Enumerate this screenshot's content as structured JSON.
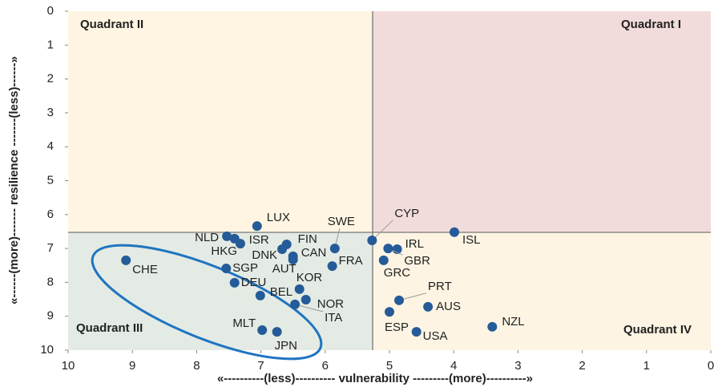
{
  "chart_data": {
    "type": "scatter",
    "xlabel": "«----------(less)---------- vulnerability ---------(more)----------»",
    "ylabel": "«------(more)------- resilience -------(less)------»",
    "quadrants": [
      "Quadrant I",
      "Quadrant II",
      "Quadrant III",
      "Quadrant IV"
    ],
    "labels": [
      "LUX",
      "NLD",
      "ISR",
      "HKG",
      "FIN",
      "DNK",
      "CAN",
      "AUT",
      "SWE",
      "FRA",
      "CYP",
      "SGP",
      "DEU",
      "CHE",
      "KOR",
      "BEL",
      "NOR",
      "ITA",
      "MLT",
      "JPN",
      "IRL",
      "ISL",
      "GBR",
      "GRC",
      "PRT",
      "AUS",
      "ESP",
      "USA",
      "NZL"
    ],
    "x": [
      7.06,
      7.53,
      7.41,
      7.32,
      6.6,
      6.67,
      6.5,
      6.5,
      5.85,
      5.89,
      5.27,
      7.54,
      7.41,
      9.1,
      6.4,
      7.01,
      6.3,
      6.47,
      6.98,
      6.75,
      4.88,
      3.99,
      5.02,
      5.09,
      4.85,
      4.4,
      5.0,
      4.58,
      3.4
    ],
    "y": [
      6.34,
      6.64,
      6.71,
      6.86,
      6.88,
      7.02,
      7.23,
      7.33,
      7.0,
      7.52,
      6.76,
      7.59,
      8.01,
      7.35,
      8.2,
      8.39,
      8.51,
      8.65,
      9.41,
      9.46,
      7.02,
      6.52,
      7.0,
      7.35,
      8.53,
      8.72,
      8.87,
      9.46,
      9.31
    ],
    "color": "#255b98",
    "xlim": [
      10,
      0
    ],
    "xticks": [
      10,
      9,
      8,
      7,
      6,
      5,
      4,
      3,
      2,
      1,
      0
    ],
    "ylim": [
      10,
      0
    ],
    "yticks": [
      0,
      1,
      2,
      3,
      4,
      5,
      6,
      7,
      8,
      9,
      10
    ]
  }
}
